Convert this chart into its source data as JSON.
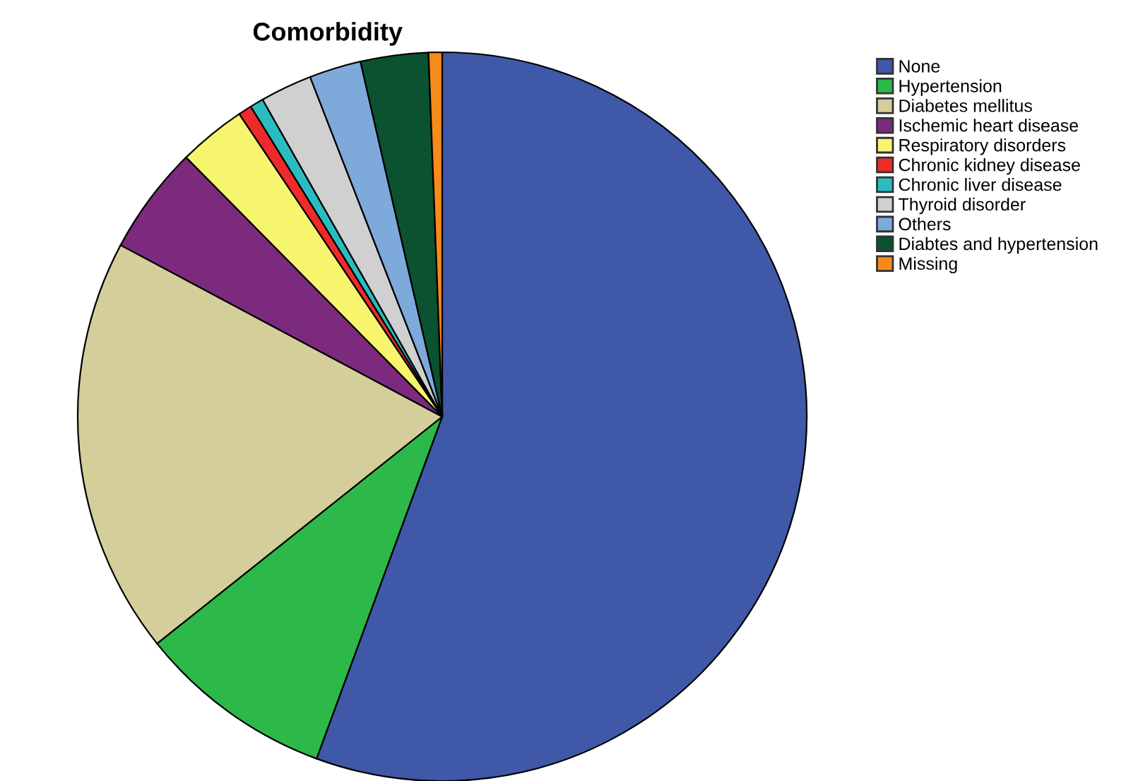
{
  "chart_data": {
    "type": "pie",
    "title": "Comorbidity",
    "categories": [
      "None",
      "Hypertension",
      "Diabetes mellitus",
      "Ischemic heart disease",
      "Respiratory disorders",
      "Chronic kidney disease",
      "Chronic liver disease",
      "Thyroid disorder",
      "Others",
      "Diabtes and hypertension",
      "Missing"
    ],
    "values": [
      55.6,
      8.7,
      18.5,
      4.8,
      3,
      0.6,
      0.6,
      2.3,
      2.3,
      3,
      0.6
    ],
    "colors": [
      "#3f58a8",
      "#2db84a",
      "#d4cf9a",
      "#7b2a7e",
      "#f7f46e",
      "#ee2a2a",
      "#2bbcc0",
      "#d0d0d0",
      "#7ea9db",
      "#0b5230",
      "#f58b1a"
    ],
    "legend": "top right"
  }
}
